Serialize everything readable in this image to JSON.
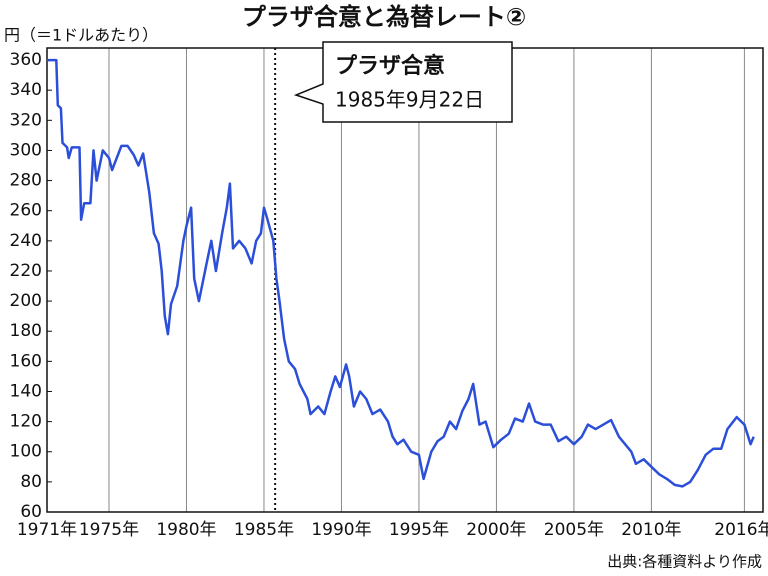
{
  "chart_data": {
    "type": "line",
    "title": "プラザ合意と為替レート②",
    "y_label": "円（＝1ドルあたり）",
    "source": "出典:各種資料より作成",
    "annotation": {
      "title": "プラザ合意",
      "date": "1985年9月22日",
      "x": 1985.72
    },
    "color": "#2b4fd8",
    "x": [
      1971.0,
      1971.6,
      1971.7,
      1971.9,
      1972.0,
      1972.3,
      1972.4,
      1972.6,
      1973.1,
      1973.2,
      1973.4,
      1973.8,
      1974.0,
      1974.2,
      1974.6,
      1975.0,
      1975.2,
      1975.8,
      1976.2,
      1976.6,
      1976.9,
      1977.2,
      1977.6,
      1977.9,
      1978.2,
      1978.4,
      1978.6,
      1978.8,
      1979.0,
      1979.4,
      1979.8,
      1980.0,
      1980.3,
      1980.5,
      1980.8,
      1981.0,
      1981.3,
      1981.6,
      1981.9,
      1982.3,
      1982.6,
      1982.8,
      1983.0,
      1983.4,
      1983.8,
      1984.2,
      1984.5,
      1984.8,
      1985.0,
      1985.2,
      1985.6,
      1985.8,
      1986.0,
      1986.3,
      1986.6,
      1987.0,
      1987.3,
      1987.8,
      1988.0,
      1988.5,
      1988.9,
      1989.3,
      1989.6,
      1989.9,
      1990.3,
      1990.5,
      1990.8,
      1991.2,
      1991.6,
      1992.0,
      1992.5,
      1993.0,
      1993.3,
      1993.6,
      1994.0,
      1994.5,
      1995.0,
      1995.3,
      1995.8,
      1996.2,
      1996.6,
      1997.0,
      1997.4,
      1997.8,
      1998.2,
      1998.5,
      1998.9,
      1999.3,
      1999.8,
      2000.3,
      2000.8,
      2001.2,
      2001.7,
      2002.1,
      2002.5,
      2003.0,
      2003.5,
      2004.0,
      2004.5,
      2005.0,
      2005.5,
      2005.9,
      2006.4,
      2006.9,
      2007.4,
      2007.9,
      2008.3,
      2008.7,
      2009.0,
      2009.5,
      2010.0,
      2010.5,
      2011.0,
      2011.5,
      2012.0,
      2012.5,
      2013.0,
      2013.5,
      2014.0,
      2014.5,
      2014.9,
      2015.5,
      2016.0,
      2016.4,
      2016.6
    ],
    "values": [
      360,
      360,
      330,
      328,
      305,
      302,
      295,
      302,
      302,
      254,
      265,
      265,
      300,
      280,
      300,
      295,
      287,
      303,
      303,
      297,
      290,
      298,
      272,
      245,
      238,
      220,
      190,
      178,
      198,
      210,
      240,
      250,
      262,
      215,
      200,
      210,
      225,
      240,
      220,
      245,
      262,
      278,
      235,
      240,
      235,
      225,
      240,
      245,
      262,
      255,
      240,
      215,
      200,
      175,
      160,
      155,
      145,
      135,
      125,
      130,
      125,
      140,
      150,
      143,
      158,
      150,
      130,
      140,
      135,
      125,
      128,
      120,
      110,
      105,
      108,
      100,
      98,
      82,
      100,
      107,
      110,
      120,
      115,
      127,
      135,
      145,
      118,
      120,
      103,
      108,
      112,
      122,
      120,
      132,
      120,
      118,
      118,
      107,
      110,
      105,
      110,
      118,
      115,
      118,
      121,
      110,
      105,
      100,
      92,
      95,
      90,
      85,
      82,
      78,
      77,
      80,
      88,
      98,
      102,
      102,
      115,
      123,
      118,
      105,
      110
    ],
    "xlim": [
      1971,
      2017.2
    ],
    "xticks": [
      {
        "value": 1971,
        "label": "1971年"
      },
      {
        "value": 1975,
        "label": "1975年"
      },
      {
        "value": 1980,
        "label": "1980年"
      },
      {
        "value": 1985,
        "label": "1985年"
      },
      {
        "value": 1990,
        "label": "1990年"
      },
      {
        "value": 1995,
        "label": "1995年"
      },
      {
        "value": 2000,
        "label": "2000年"
      },
      {
        "value": 2005,
        "label": "2005年"
      },
      {
        "value": 2010,
        "label": "2010年"
      },
      {
        "value": 2016,
        "label": "2016年"
      }
    ],
    "ylim": [
      60,
      368
    ],
    "yticks": [
      60,
      80,
      100,
      120,
      140,
      160,
      180,
      200,
      220,
      240,
      260,
      280,
      300,
      320,
      340,
      360
    ],
    "grid": true
  }
}
